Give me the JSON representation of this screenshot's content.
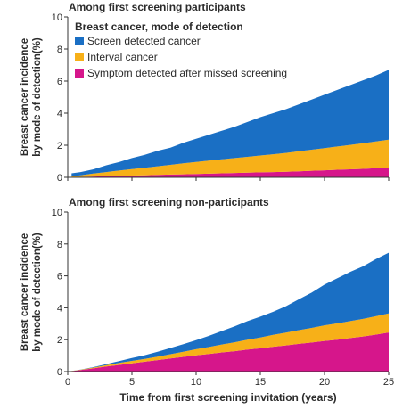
{
  "chart_data": {
    "type": "area",
    "stacked": true,
    "xlabel": "Time from first screening invitation (years)",
    "x_ticks": [
      0,
      5,
      10,
      15,
      20,
      25
    ],
    "xlim": [
      0,
      25
    ],
    "legend": {
      "title": "Breast cancer, mode of detection",
      "placement": "top-left",
      "entries": [
        {
          "name": "Screen detected cancer",
          "color": "#1a6fc4"
        },
        {
          "name": "Interval cancer",
          "color": "#f7b018"
        },
        {
          "name": "Symptom detected after missed screening",
          "color": "#d6168b"
        }
      ]
    },
    "panels": [
      {
        "title": "Among first screening participants",
        "ylabel_lines": [
          "Breast cancer incidence",
          "by mode of detection(%)"
        ],
        "ylim": [
          0,
          10
        ],
        "y_ticks": [
          0,
          2,
          4,
          6,
          8,
          10
        ],
        "x": [
          0.3,
          1,
          2,
          3,
          4,
          5,
          6,
          7,
          8,
          9,
          10,
          11,
          12,
          13,
          14,
          15,
          16,
          17,
          18,
          19,
          20,
          21,
          22,
          23,
          24,
          25
        ],
        "series": [
          {
            "name": "Symptom detected after missed screening",
            "values": [
              0.02,
              0.03,
              0.05,
              0.07,
              0.09,
              0.11,
              0.13,
              0.15,
              0.17,
              0.19,
              0.21,
              0.23,
              0.25,
              0.27,
              0.29,
              0.31,
              0.33,
              0.35,
              0.38,
              0.41,
              0.44,
              0.47,
              0.5,
              0.53,
              0.57,
              0.6
            ]
          },
          {
            "name": "Interval cancer",
            "values": [
              0.05,
              0.1,
              0.19,
              0.26,
              0.33,
              0.4,
              0.47,
              0.54,
              0.61,
              0.68,
              0.75,
              0.81,
              0.87,
              0.93,
              0.99,
              1.05,
              1.11,
              1.17,
              1.24,
              1.31,
              1.38,
              1.45,
              1.52,
              1.59,
              1.67,
              1.75
            ]
          },
          {
            "name": "Screen detected cancer",
            "values": [
              0.18,
              0.2,
              0.26,
              0.42,
              0.53,
              0.69,
              0.8,
              0.96,
              1.07,
              1.28,
              1.44,
              1.61,
              1.78,
              1.95,
              2.17,
              2.39,
              2.56,
              2.73,
              2.93,
              3.13,
              3.33,
              3.53,
              3.73,
              3.93,
              4.11,
              4.35
            ]
          }
        ]
      },
      {
        "title": "Among first screening non-participants",
        "ylabel_lines": [
          "Breast cancer incidence",
          "by mode of detection(%)"
        ],
        "ylim": [
          0,
          10
        ],
        "y_ticks": [
          0,
          2,
          4,
          6,
          8,
          10
        ],
        "x": [
          0,
          1,
          2,
          3,
          4,
          5,
          6,
          7,
          8,
          9,
          10,
          11,
          12,
          13,
          14,
          15,
          16,
          17,
          18,
          19,
          20,
          21,
          22,
          23,
          24,
          25
        ],
        "series": [
          {
            "name": "Symptom detected after missed screening",
            "values": [
              0,
              0.1,
              0.2,
              0.32,
              0.42,
              0.52,
              0.62,
              0.72,
              0.82,
              0.92,
              1.02,
              1.1,
              1.2,
              1.28,
              1.38,
              1.46,
              1.56,
              1.64,
              1.74,
              1.82,
              1.92,
              2.0,
              2.1,
              2.2,
              2.32,
              2.45
            ]
          },
          {
            "name": "Interval cancer",
            "values": [
              0,
              0.02,
              0.05,
              0.08,
              0.12,
              0.15,
              0.18,
              0.22,
              0.27,
              0.32,
              0.38,
              0.44,
              0.5,
              0.56,
              0.62,
              0.68,
              0.74,
              0.8,
              0.86,
              0.92,
              0.98,
              1.02,
              1.06,
              1.1,
              1.15,
              1.2
            ]
          },
          {
            "name": "Screen detected cancer",
            "values": [
              0,
              0.01,
              0.03,
              0.07,
              0.12,
              0.18,
              0.23,
              0.3,
              0.39,
              0.48,
              0.57,
              0.7,
              0.84,
              0.99,
              1.16,
              1.3,
              1.45,
              1.66,
              1.93,
              2.21,
              2.55,
              2.83,
              3.09,
              3.3,
              3.58,
              3.8
            ]
          }
        ]
      }
    ]
  }
}
